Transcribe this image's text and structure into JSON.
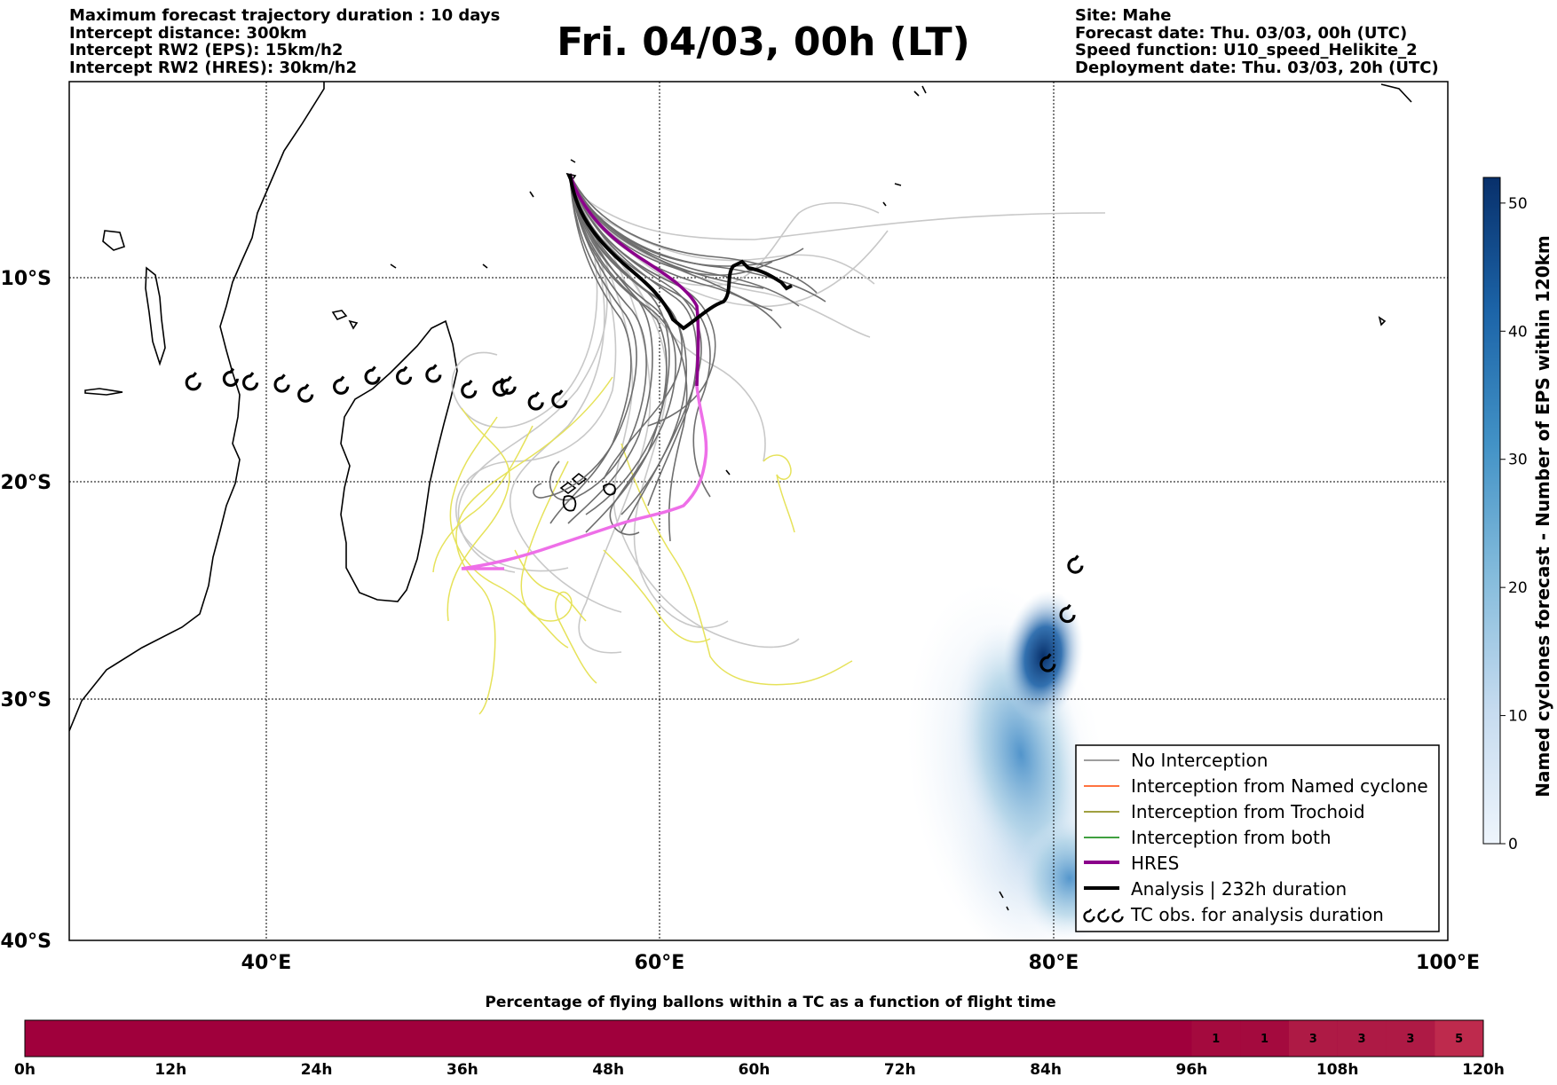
{
  "header": {
    "left": [
      "Maximum forecast trajectory duration : 10 days",
      "Intercept distance: 300km",
      "Intercept RW2 (EPS):  15km/h2",
      "Intercept RW2 (HRES): 30km/h2"
    ],
    "title": "Fri. 04/03, 00h (LT)",
    "right": [
      "Site: Mahe",
      "Forecast date: Thu. 03/03, 00h (UTC)",
      "Speed function: U10_speed_Helikite_2",
      "Deployment date: Thu. 03/03, 20h (UTC)"
    ]
  },
  "map": {
    "lat_labels": [
      "10°S",
      "20°S",
      "30°S",
      "40°S"
    ],
    "lon_labels": [
      "40°E",
      "60°E",
      "80°E",
      "100°E"
    ],
    "lon_range": [
      30,
      100
    ],
    "lat_range": [
      -40,
      -1
    ],
    "tc_symbol": "tropical-cyclone-icon"
  },
  "legend": {
    "items": [
      {
        "label": "No Interception",
        "color": "#7f7f7f"
      },
      {
        "label": "Interception from Named cyclone",
        "color": "#ff4500"
      },
      {
        "label": "Interception from Trochoid",
        "color": "#808000"
      },
      {
        "label": "Interception from both",
        "color": "#008000"
      },
      {
        "label": "HRES",
        "color": "#8b008b"
      },
      {
        "label": "Analysis | 232h duration",
        "color": "#000000"
      },
      {
        "label": "TC obs. for analysis duration",
        "color": "#000000"
      }
    ]
  },
  "colorbar": {
    "title": "Named cyclones forecast - Number of EPS within 120km",
    "ticks": [
      "0",
      "10",
      "20",
      "30",
      "40",
      "50"
    ],
    "range": [
      0,
      52
    ],
    "color_low": "#e6eff9",
    "color_high": "#08306b"
  },
  "timeline": {
    "title": "Percentage of flying ballons within a TC as a function of flight time",
    "ticks": [
      "0h",
      "12h",
      "24h",
      "36h",
      "48h",
      "60h",
      "72h",
      "84h",
      "96h",
      "108h",
      "120h"
    ],
    "base_color": "#a0003c",
    "cells": [
      {
        "label": "1",
        "color": "#a40a3e"
      },
      {
        "label": "1",
        "color": "#a40a3e"
      },
      {
        "label": "3",
        "color": "#ae1a45"
      },
      {
        "label": "3",
        "color": "#ae1a45"
      },
      {
        "label": "3",
        "color": "#ae1a45"
      },
      {
        "label": "5",
        "color": "#be2a4d"
      }
    ]
  },
  "chart_data": {
    "type": "map",
    "tracks": {
      "hres": [
        [
          55.7,
          5.1
        ],
        [
          57.5,
          8.7
        ],
        [
          60.0,
          10.2
        ],
        [
          61.8,
          11.7
        ],
        [
          62.0,
          14.0
        ],
        [
          62.3,
          16.2
        ],
        [
          62.5,
          18.7
        ],
        [
          61.7,
          20.1
        ],
        [
          60.8,
          21.3
        ],
        [
          59.1,
          21.7
        ],
        [
          57.1,
          22.2
        ],
        [
          55.1,
          23.2
        ],
        [
          52.1,
          24.0
        ]
      ],
      "analysis": [
        [
          55.7,
          5.1
        ],
        [
          56.3,
          7.6
        ],
        [
          57.8,
          9.1
        ],
        [
          59.2,
          10.3
        ],
        [
          61.1,
          12.4
        ],
        [
          62.1,
          12.0
        ],
        [
          62.9,
          11.5
        ],
        [
          63.3,
          10.1
        ],
        [
          64.3,
          9.3
        ],
        [
          65.1,
          10.0
        ],
        [
          65.5,
          10.6
        ],
        [
          66.5,
          10.7
        ]
      ]
    },
    "tc_obs": [
      [
        36.3,
        15.3
      ],
      [
        38.2,
        15.1
      ],
      [
        39.2,
        15.3
      ],
      [
        40.8,
        15.4
      ],
      [
        42.0,
        15.9
      ],
      [
        43.8,
        15.5
      ],
      [
        45.4,
        15.0
      ],
      [
        47.0,
        15.0
      ],
      [
        48.5,
        14.9
      ],
      [
        50.3,
        15.7
      ],
      [
        51.9,
        15.6
      ],
      [
        52.3,
        15.5
      ],
      [
        53.7,
        16.3
      ],
      [
        54.9,
        16.2
      ],
      [
        81.1,
        24.6
      ],
      [
        80.7,
        27.1
      ],
      [
        79.7,
        29.6
      ]
    ]
  }
}
